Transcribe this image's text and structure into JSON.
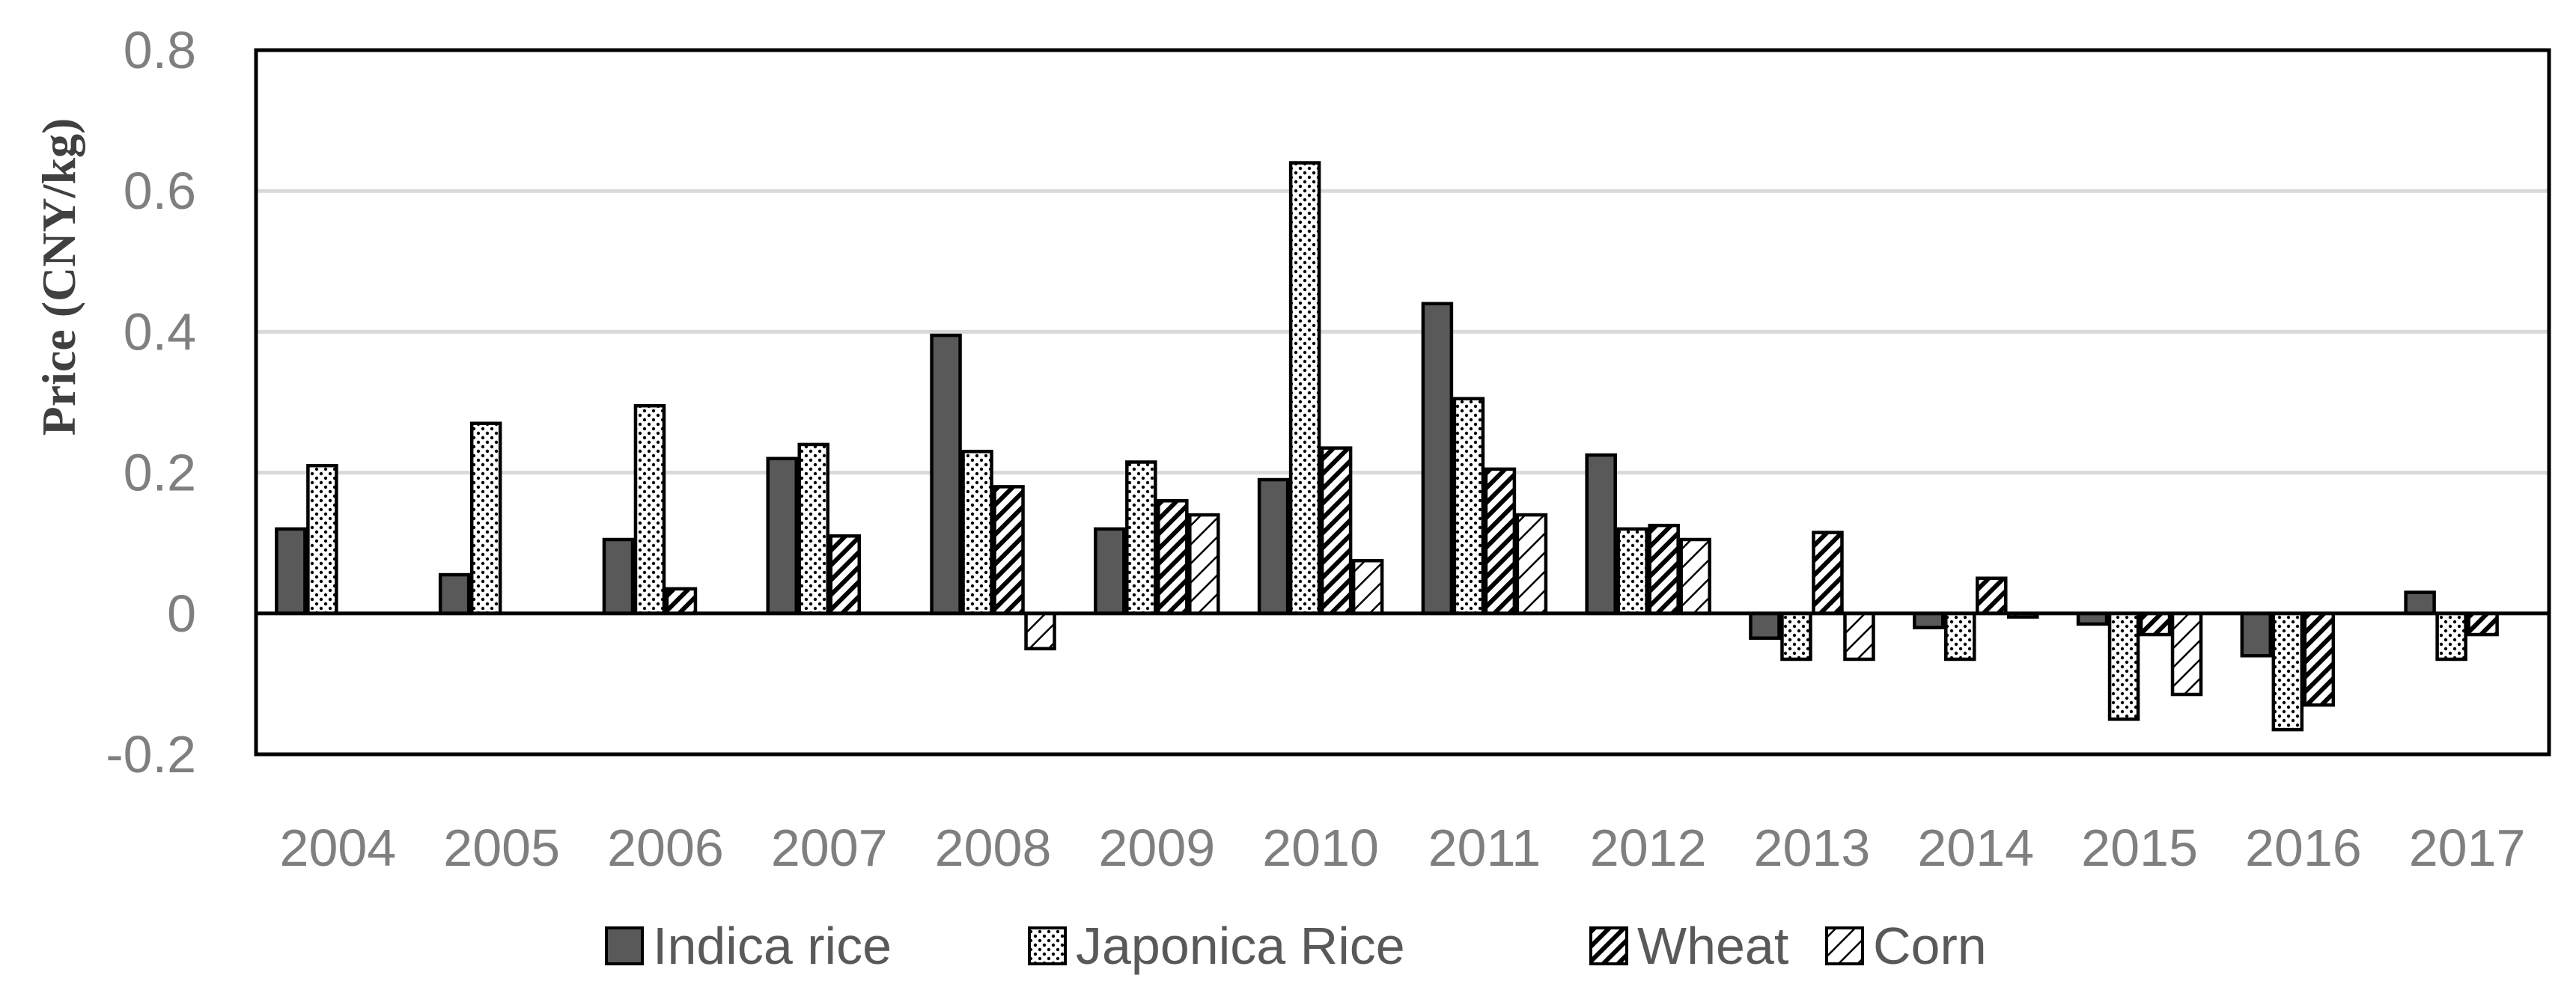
{
  "chart_data": {
    "type": "bar",
    "title": "",
    "xlabel": "",
    "ylabel": "Price (CNY/kg)",
    "ylim": [
      -0.2,
      0.8
    ],
    "yticks": [
      -0.2,
      0,
      0.2,
      0.4,
      0.6,
      0.8
    ],
    "ytick_labels": [
      "-0.2",
      "0",
      "0.2",
      "0.4",
      "0.6",
      "0.8"
    ],
    "grid": true,
    "legend_position": "bottom",
    "categories": [
      "2004",
      "2005",
      "2006",
      "2007",
      "2008",
      "2009",
      "2010",
      "2011",
      "2012",
      "2013",
      "2014",
      "2015",
      "2016",
      "2017"
    ],
    "series": [
      {
        "name": "Indica rice",
        "pattern": "solid-gray",
        "color": "#595959",
        "values": [
          0.12,
          0.055,
          0.105,
          0.22,
          0.395,
          0.12,
          0.19,
          0.44,
          0.225,
          -0.035,
          -0.02,
          -0.015,
          -0.06,
          0.03
        ]
      },
      {
        "name": "Japonica Rice",
        "pattern": "dots",
        "color": "#ffffff",
        "values": [
          0.21,
          0.27,
          0.295,
          0.24,
          0.23,
          0.215,
          0.64,
          0.305,
          0.12,
          -0.065,
          -0.065,
          -0.15,
          -0.165,
          -0.065
        ]
      },
      {
        "name": "Wheat",
        "pattern": "wide-diagonal",
        "color": "#ffffff",
        "values": [
          0,
          0,
          0.035,
          0.11,
          0.18,
          0.16,
          0.235,
          0.205,
          0.125,
          0.115,
          0.05,
          -0.03,
          -0.13,
          -0.03
        ]
      },
      {
        "name": "Corn",
        "pattern": "light-diagonal",
        "color": "#ffffff",
        "values": [
          0,
          0,
          0,
          0,
          -0.05,
          0.14,
          0.075,
          0.14,
          0.105,
          -0.065,
          -0.005,
          -0.115,
          0,
          0
        ]
      }
    ]
  }
}
